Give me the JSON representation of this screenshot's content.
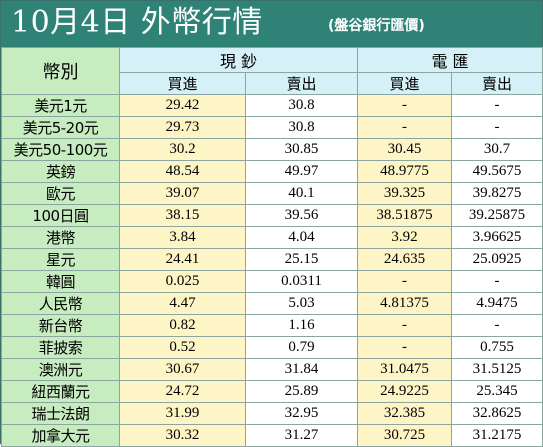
{
  "header": {
    "title": "10月4日 外幣行情",
    "subtitle": "(盤谷銀行匯價)"
  },
  "table": {
    "currency_label": "幣別",
    "groups": {
      "cash": "現 鈔",
      "wire": "電 匯"
    },
    "subheaders": {
      "cash_buy": "買進",
      "cash_sell": "賣出",
      "wire_buy": "買進",
      "wire_sell": "賣出"
    },
    "rows": [
      {
        "currency": "美元1元",
        "cash_buy": "29.42",
        "cash_sell": "30.8",
        "wire_buy": "-",
        "wire_sell": "-"
      },
      {
        "currency": "美元5-20元",
        "cash_buy": "29.73",
        "cash_sell": "30.8",
        "wire_buy": "-",
        "wire_sell": "-"
      },
      {
        "currency": "美元50-100元",
        "cash_buy": "30.2",
        "cash_sell": "30.85",
        "wire_buy": "30.45",
        "wire_sell": "30.7"
      },
      {
        "currency": "英鎊",
        "cash_buy": "48.54",
        "cash_sell": "49.97",
        "wire_buy": "48.9775",
        "wire_sell": "49.5675"
      },
      {
        "currency": "歐元",
        "cash_buy": "39.07",
        "cash_sell": "40.1",
        "wire_buy": "39.325",
        "wire_sell": "39.8275"
      },
      {
        "currency": "100日圓",
        "cash_buy": "38.15",
        "cash_sell": "39.56",
        "wire_buy": "38.51875",
        "wire_sell": "39.25875"
      },
      {
        "currency": "港幣",
        "cash_buy": "3.84",
        "cash_sell": "4.04",
        "wire_buy": "3.92",
        "wire_sell": "3.96625"
      },
      {
        "currency": "星元",
        "cash_buy": "24.41",
        "cash_sell": "25.15",
        "wire_buy": "24.635",
        "wire_sell": "25.0925"
      },
      {
        "currency": "韓圓",
        "cash_buy": "0.025",
        "cash_sell": "0.0311",
        "wire_buy": "-",
        "wire_sell": "-"
      },
      {
        "currency": "人民幣",
        "cash_buy": "4.47",
        "cash_sell": "5.03",
        "wire_buy": "4.81375",
        "wire_sell": "4.9475"
      },
      {
        "currency": "新台幣",
        "cash_buy": "0.82",
        "cash_sell": "1.16",
        "wire_buy": "-",
        "wire_sell": "-"
      },
      {
        "currency": "菲披索",
        "cash_buy": "0.52",
        "cash_sell": "0.79",
        "wire_buy": "-",
        "wire_sell": "0.755"
      },
      {
        "currency": "澳洲元",
        "cash_buy": "30.67",
        "cash_sell": "31.84",
        "wire_buy": "31.0475",
        "wire_sell": "31.5125"
      },
      {
        "currency": "紐西蘭元",
        "cash_buy": "24.72",
        "cash_sell": "25.89",
        "wire_buy": "24.9225",
        "wire_sell": "25.345"
      },
      {
        "currency": "瑞士法朗",
        "cash_buy": "31.99",
        "cash_sell": "32.95",
        "wire_buy": "32.385",
        "wire_sell": "32.8625"
      },
      {
        "currency": "加拿大元",
        "cash_buy": "30.32",
        "cash_sell": "31.27",
        "wire_buy": "30.725",
        "wire_sell": "31.2175"
      }
    ]
  },
  "colors": {
    "header_bg": "#2f8276",
    "currency_col_bg": "#c7ecc0",
    "header_row_bg": "#d6f0f8",
    "buy_col_bg": "#fdf5c5",
    "sell_col_bg": "#ffffff",
    "grid_line": "#8aa69e"
  }
}
